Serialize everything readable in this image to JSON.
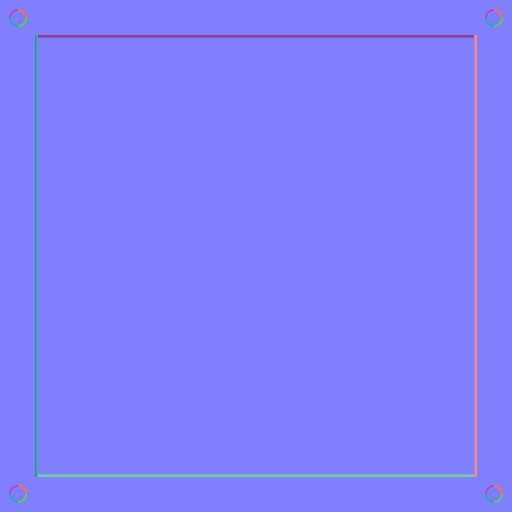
{
  "scene": {
    "title": "",
    "background_color": "#8080ff"
  },
  "panel": {
    "border_colors": {
      "top": "#9a3a8c",
      "bottom": "#69d291",
      "left": "#2c9a98",
      "right": "#f58984"
    }
  },
  "corners": [
    {
      "name": "top-left-rivet-icon"
    },
    {
      "name": "top-right-rivet-icon"
    },
    {
      "name": "bottom-left-rivet-icon"
    },
    {
      "name": "bottom-right-rivet-icon"
    }
  ]
}
